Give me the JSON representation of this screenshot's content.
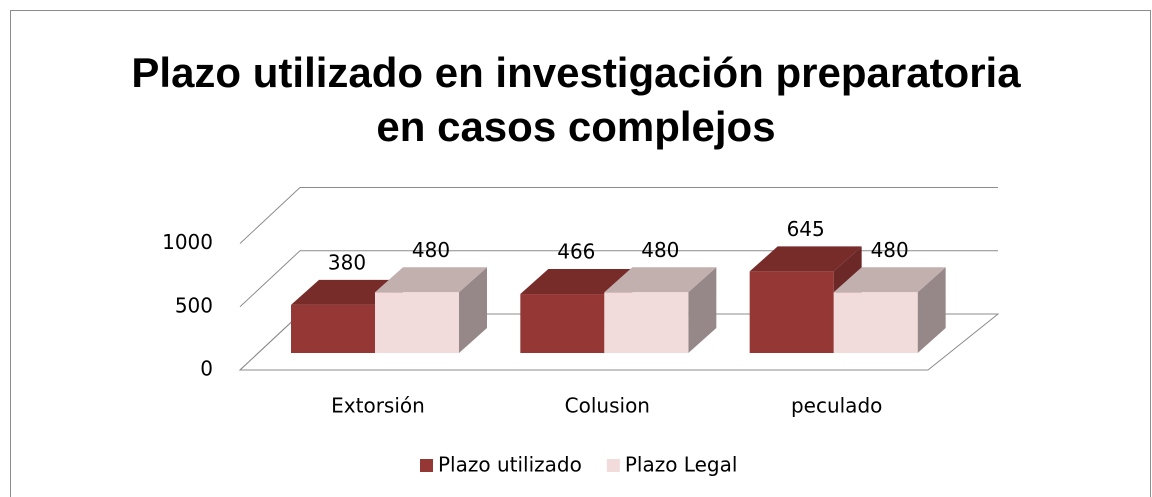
{
  "chart_data": {
    "type": "bar3d",
    "title": [
      "Plazo utilizado en investigación preparatoria",
      "en casos complejos"
    ],
    "categories": [
      "Extorsión",
      "Colusion",
      "peculado"
    ],
    "series": [
      {
        "name": "Plazo utilizado",
        "color": "#953735",
        "values": [
          380,
          466,
          645
        ]
      },
      {
        "name": "Plazo Legal",
        "color": "#f2dcdb",
        "values": [
          480,
          480,
          480
        ]
      }
    ],
    "ylim": [
      0,
      1000
    ],
    "yticks": [
      0,
      500,
      1000
    ],
    "grid": true,
    "legend": "bottom"
  }
}
